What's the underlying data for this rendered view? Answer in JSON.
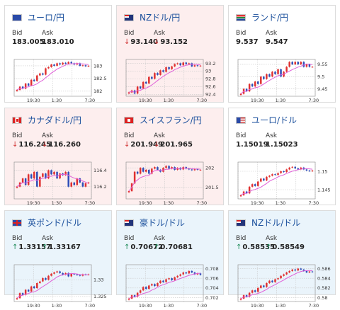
{
  "labels": {
    "bid": "Bid",
    "ask": "Ask"
  },
  "colors": {
    "bull": "#e03030",
    "bear": "#2e4db8",
    "ma": "#e060d8",
    "title": "#1a4f9c"
  },
  "cards": [
    {
      "id": "eur-jpy",
      "title": "ユーロ/円",
      "flag": "eu-flag-icon",
      "state": "neutral",
      "bid": "183.005",
      "ask": "183.010",
      "x_ticks": [
        "19:30",
        "1:30",
        "7:30"
      ],
      "y_ticks": [
        "183",
        "182.5",
        "182"
      ],
      "chart_data": {
        "type": "candlestick",
        "ylim": [
          181.8,
          183.25
        ],
        "close": [
          182.05,
          182.18,
          182.1,
          182.3,
          182.22,
          182.45,
          182.4,
          182.62,
          182.7,
          182.65,
          182.9,
          182.95,
          183.05,
          183.0,
          183.1,
          183.05,
          183.12,
          183.08,
          183.15,
          183.1,
          183.05,
          183.1,
          183.0,
          183.02,
          182.98,
          183.0
        ]
      }
    },
    {
      "id": "nzd-jpy",
      "title": "NZドル/円",
      "flag": "nz-flag-icon",
      "state": "down",
      "bid": "93.140",
      "ask": "93.152",
      "arrow": "↓",
      "x_ticks": [
        "19:30",
        "1:30",
        "7:30"
      ],
      "y_ticks": [
        "93.2",
        "93",
        "92.8",
        "92.6",
        "92.4"
      ],
      "chart_data": {
        "type": "candlestick",
        "ylim": [
          92.35,
          93.3
        ],
        "close": [
          92.45,
          92.5,
          92.42,
          92.6,
          92.55,
          92.72,
          92.68,
          92.85,
          92.8,
          92.95,
          92.9,
          93.02,
          92.98,
          93.1,
          93.05,
          93.12,
          93.18,
          93.2,
          93.15,
          93.22,
          93.18,
          93.2,
          93.12,
          93.15,
          93.13,
          93.14
        ]
      }
    },
    {
      "id": "zar-jpy",
      "title": "ランド/円",
      "flag": "za-flag-icon",
      "state": "neutral",
      "bid": "9.537",
      "ask": "9.547",
      "x_ticks": [
        "19:30",
        "1:30",
        "7:30"
      ],
      "y_ticks": [
        "9.55",
        "9.5",
        "9.45"
      ],
      "chart_data": {
        "type": "candlestick",
        "ylim": [
          9.42,
          9.57
        ],
        "close": [
          9.43,
          9.45,
          9.44,
          9.47,
          9.46,
          9.48,
          9.47,
          9.5,
          9.49,
          9.51,
          9.5,
          9.52,
          9.51,
          9.53,
          9.5,
          9.52,
          9.54,
          9.56,
          9.55,
          9.56,
          9.55,
          9.56,
          9.54,
          9.55,
          9.54,
          9.54
        ]
      }
    },
    {
      "id": "cad-jpy",
      "title": "カナダドル/円",
      "flag": "ca-flag-icon",
      "state": "down",
      "bid": "116.245",
      "ask": "116.260",
      "arrow": "↓",
      "x_ticks": [
        "19:30",
        "1:30",
        "7:30"
      ],
      "y_ticks": [
        "116.4",
        "116.2"
      ],
      "chart_data": {
        "type": "candlestick",
        "ylim": [
          116.05,
          116.5
        ],
        "close": [
          116.2,
          116.25,
          116.3,
          116.22,
          116.35,
          116.3,
          116.38,
          116.2,
          116.32,
          116.36,
          116.3,
          116.4,
          116.35,
          116.38,
          116.3,
          116.36,
          116.34,
          116.38,
          116.2,
          116.25,
          116.22,
          116.3,
          116.25,
          116.2,
          116.24,
          116.25
        ]
      }
    },
    {
      "id": "chf-jpy",
      "title": "スイスフラン/円",
      "flag": "ch-flag-icon",
      "state": "down",
      "bid": "201.949",
      "ask": "201.965",
      "arrow": "↓",
      "x_ticks": [
        "19:30",
        "1:30",
        "7:30"
      ],
      "y_ticks": [
        "202",
        "201.5"
      ],
      "chart_data": {
        "type": "candlestick",
        "ylim": [
          201.2,
          202.15
        ],
        "close": [
          201.4,
          201.6,
          201.9,
          201.85,
          202.0,
          201.9,
          201.95,
          201.85,
          201.98,
          202.02,
          201.95,
          201.9,
          202.0,
          202.05,
          201.98,
          202.02,
          201.95,
          202.0,
          201.96,
          202.02,
          201.98,
          201.96,
          201.94,
          201.97,
          201.95,
          201.95
        ]
      }
    },
    {
      "id": "eur-usd",
      "title": "ユーロ/ドル",
      "flag": "us-flag-icon",
      "state": "neutral",
      "bid": "1.15019",
      "ask": "1.15023",
      "x_ticks": [
        "19:30",
        "1:30",
        "7:30"
      ],
      "y_ticks": [
        "1.15",
        "1.145"
      ],
      "chart_data": {
        "type": "candlestick",
        "ylim": [
          1.1425,
          1.1525
        ],
        "close": [
          1.1435,
          1.1445,
          1.144,
          1.1458,
          1.1465,
          1.146,
          1.1472,
          1.148,
          1.1475,
          1.1485,
          1.1488,
          1.1492,
          1.149,
          1.1495,
          1.15,
          1.1498,
          1.1505,
          1.151,
          1.1512,
          1.1508,
          1.1505,
          1.151,
          1.1505,
          1.1502,
          1.15,
          1.1502
        ]
      }
    },
    {
      "id": "gbp-usd",
      "title": "英ポンド/ドル",
      "flag": "gb-flag-icon",
      "state": "up",
      "bid": "1.33157",
      "ask": "1.33167",
      "arrow": "↑",
      "x_ticks": [
        "19:30",
        "1:30",
        "7:30"
      ],
      "y_ticks": [
        "1.33",
        "1.325"
      ],
      "chart_data": {
        "type": "candlestick",
        "ylim": [
          1.3235,
          1.3345
        ],
        "close": [
          1.3245,
          1.326,
          1.3255,
          1.327,
          1.3265,
          1.328,
          1.3275,
          1.329,
          1.3295,
          1.3305,
          1.33,
          1.3312,
          1.3318,
          1.3322,
          1.3325,
          1.332,
          1.3315,
          1.332,
          1.331,
          1.3318,
          1.3316,
          1.3314,
          1.3312,
          1.3316,
          1.3315,
          1.3316
        ]
      }
    },
    {
      "id": "aud-usd",
      "title": "豪ドル/ドル",
      "flag": "au-flag-icon",
      "state": "up",
      "bid": "0.70672",
      "ask": "0.70681",
      "arrow": "↑",
      "x_ticks": [
        "19:30",
        "1:30",
        "7:30"
      ],
      "y_ticks": [
        "0.708",
        "0.706",
        "0.704",
        "0.702"
      ],
      "chart_data": {
        "type": "candlestick",
        "ylim": [
          0.7012,
          0.7088
        ],
        "close": [
          0.7018,
          0.7025,
          0.7022,
          0.703,
          0.7035,
          0.7042,
          0.7038,
          0.7045,
          0.7048,
          0.7044,
          0.705,
          0.7055,
          0.7052,
          0.7058,
          0.706,
          0.7056,
          0.7062,
          0.7065,
          0.7068,
          0.7072,
          0.707,
          0.7075,
          0.7072,
          0.7068,
          0.707,
          0.7067
        ]
      }
    },
    {
      "id": "nzd-usd",
      "title": "NZドル/ドル",
      "flag": "nz-flag-icon",
      "state": "up",
      "bid": "0.58535",
      "ask": "0.58549",
      "arrow": "↑",
      "x_ticks": [
        "19:30",
        "1:30",
        "7:30"
      ],
      "y_ticks": [
        "0.586",
        "0.584",
        "0.582",
        "0.58"
      ],
      "chart_data": {
        "type": "candlestick",
        "ylim": [
          0.5792,
          0.5868
        ],
        "close": [
          0.5798,
          0.5805,
          0.5802,
          0.581,
          0.5815,
          0.5812,
          0.582,
          0.5825,
          0.5822,
          0.583,
          0.5835,
          0.5832,
          0.5838,
          0.584,
          0.5845,
          0.5848,
          0.5852,
          0.5855,
          0.5858,
          0.5856,
          0.586,
          0.5858,
          0.5855,
          0.5852,
          0.5854,
          0.5853
        ]
      }
    }
  ]
}
